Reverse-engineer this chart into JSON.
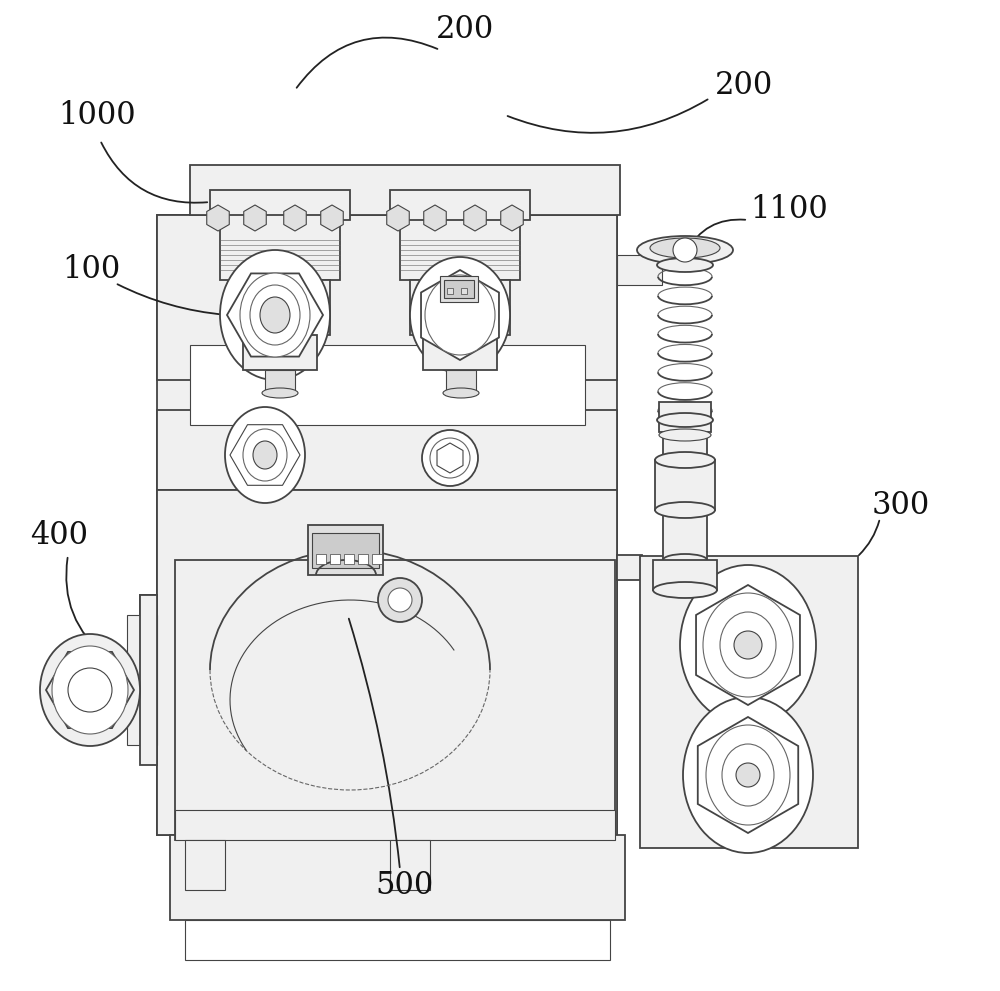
{
  "bg_color": "#ffffff",
  "lc": "#444444",
  "lc_thin": "#666666",
  "fc_white": "#ffffff",
  "fc_light": "#f0f0f0",
  "fc_mid": "#e0e0e0",
  "fc_dark": "#cccccc",
  "lw_main": 1.3,
  "lw_thin": 0.8,
  "lw_very_thin": 0.5,
  "font_size": 22
}
